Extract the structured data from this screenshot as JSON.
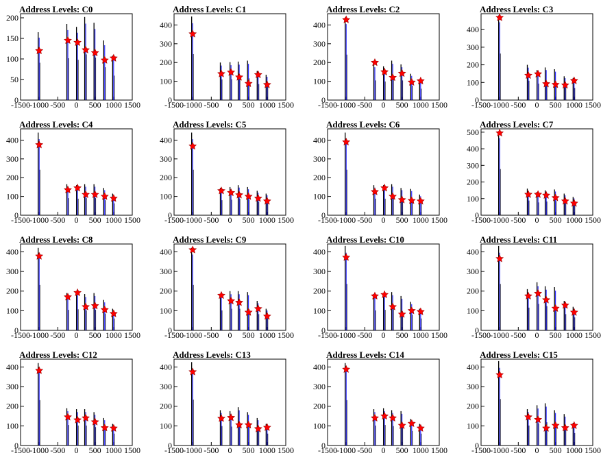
{
  "figure": {
    "title_prefix": "Address Levels: ",
    "colors": {
      "histogram": "#000000",
      "fit": "#0000ff",
      "marker": "#ff0000",
      "frame": "#000000"
    }
  },
  "chart_data": [
    {
      "type": "histogram",
      "title": "Address Levels: C0",
      "xlim": [
        -1500,
        1500
      ],
      "ylim": [
        0,
        210
      ],
      "yticks": [
        0,
        50,
        100,
        150,
        200
      ],
      "xticks": [
        -1500,
        -1000,
        -500,
        0,
        500,
        1000,
        1500
      ],
      "peaks_x": [
        -1000,
        -230,
        30,
        250,
        500,
        760,
        1000
      ],
      "peaks_y": [
        120,
        145,
        140,
        122,
        115,
        97,
        102
      ],
      "bar_heights": [
        165,
        185,
        178,
        202,
        188,
        145,
        108
      ]
    },
    {
      "type": "histogram",
      "title": "Address Levels: C1",
      "xlim": [
        -1500,
        1500
      ],
      "ylim": [
        0,
        460
      ],
      "yticks": [
        0,
        100,
        200,
        300,
        400
      ],
      "xticks": [
        -1500,
        -1000,
        -500,
        0,
        500,
        1000,
        1500
      ],
      "peaks_x": [
        -1000,
        -230,
        30,
        250,
        500,
        760,
        1000
      ],
      "peaks_y": [
        352,
        140,
        148,
        122,
        88,
        135,
        82
      ],
      "bar_heights": [
        445,
        200,
        202,
        205,
        210,
        155,
        135
      ]
    },
    {
      "type": "histogram",
      "title": "Address Levels: C2",
      "xlim": [
        -1500,
        1500
      ],
      "ylim": [
        0,
        460
      ],
      "yticks": [
        0,
        100,
        200,
        300,
        400
      ],
      "xticks": [
        -1500,
        -1000,
        -500,
        0,
        500,
        1000,
        1500
      ],
      "peaks_x": [
        -1000,
        -230,
        30,
        250,
        500,
        760,
        1000
      ],
      "peaks_y": [
        428,
        200,
        150,
        120,
        142,
        95,
        102
      ],
      "bar_heights": [
        440,
        190,
        180,
        210,
        190,
        140,
        110
      ]
    },
    {
      "type": "histogram",
      "title": "Address Levels: C3",
      "xlim": [
        -1500,
        1500
      ],
      "ylim": [
        0,
        490
      ],
      "yticks": [
        0,
        100,
        200,
        300,
        400
      ],
      "xticks": [
        -1500,
        -1000,
        -500,
        0,
        500,
        1000,
        1500
      ],
      "peaks_x": [
        -1000,
        -230,
        30,
        250,
        500,
        760,
        1000
      ],
      "peaks_y": [
        468,
        140,
        148,
        92,
        88,
        85,
        110
      ],
      "bar_heights": [
        480,
        200,
        170,
        185,
        175,
        135,
        125
      ]
    },
    {
      "type": "histogram",
      "title": "Address Levels: C4",
      "xlim": [
        -1500,
        1500
      ],
      "ylim": [
        0,
        460
      ],
      "yticks": [
        0,
        100,
        200,
        300,
        400
      ],
      "xticks": [
        -1500,
        -1000,
        -500,
        0,
        500,
        1000,
        1500
      ],
      "peaks_x": [
        -1000,
        -230,
        30,
        250,
        500,
        760,
        1000
      ],
      "peaks_y": [
        375,
        135,
        145,
        110,
        110,
        100,
        90
      ],
      "bar_heights": [
        440,
        165,
        160,
        165,
        165,
        145,
        115
      ]
    },
    {
      "type": "histogram",
      "title": "Address Levels: C5",
      "xlim": [
        -1500,
        1500
      ],
      "ylim": [
        0,
        460
      ],
      "yticks": [
        0,
        100,
        200,
        300,
        400
      ],
      "xticks": [
        -1500,
        -1000,
        -500,
        0,
        500,
        1000,
        1500
      ],
      "peaks_x": [
        -1000,
        -230,
        30,
        250,
        500,
        760,
        1000
      ],
      "peaks_y": [
        368,
        130,
        120,
        108,
        100,
        90,
        75
      ],
      "bar_heights": [
        440,
        145,
        150,
        160,
        150,
        130,
        115
      ]
    },
    {
      "type": "histogram",
      "title": "Address Levels: C6",
      "xlim": [
        -1500,
        1500
      ],
      "ylim": [
        0,
        460
      ],
      "yticks": [
        0,
        100,
        200,
        300,
        400
      ],
      "xticks": [
        -1500,
        -1000,
        -500,
        0,
        500,
        1000,
        1500
      ],
      "peaks_x": [
        -1000,
        -230,
        30,
        250,
        500,
        760,
        1000
      ],
      "peaks_y": [
        390,
        125,
        145,
        100,
        82,
        78,
        75
      ],
      "bar_heights": [
        440,
        160,
        160,
        165,
        145,
        140,
        110
      ]
    },
    {
      "type": "histogram",
      "title": "Address Levels: C7",
      "xlim": [
        -1500,
        1500
      ],
      "ylim": [
        0,
        520
      ],
      "yticks": [
        0,
        100,
        200,
        300,
        400,
        500
      ],
      "xticks": [
        -1500,
        -1000,
        -500,
        0,
        500,
        1000,
        1500
      ],
      "peaks_x": [
        -1000,
        -230,
        30,
        250,
        500,
        760,
        1000
      ],
      "peaks_y": [
        495,
        125,
        125,
        120,
        105,
        85,
        72
      ],
      "bar_heights": [
        505,
        160,
        140,
        150,
        155,
        130,
        110
      ]
    },
    {
      "type": "histogram",
      "title": "Address Levels: C8",
      "xlim": [
        -1500,
        1500
      ],
      "ylim": [
        0,
        440
      ],
      "yticks": [
        0,
        100,
        200,
        300,
        400
      ],
      "xticks": [
        -1500,
        -1000,
        -500,
        0,
        500,
        1000,
        1500
      ],
      "peaks_x": [
        -1000,
        -230,
        30,
        250,
        500,
        760,
        1000
      ],
      "peaks_y": [
        378,
        170,
        192,
        120,
        125,
        105,
        85
      ],
      "bar_heights": [
        420,
        190,
        195,
        185,
        190,
        155,
        110
      ]
    },
    {
      "type": "histogram",
      "title": "Address Levels: C9",
      "xlim": [
        -1500,
        1500
      ],
      "ylim": [
        0,
        440
      ],
      "yticks": [
        0,
        100,
        200,
        300,
        400
      ],
      "xticks": [
        -1500,
        -1000,
        -500,
        0,
        500,
        1000,
        1500
      ],
      "peaks_x": [
        -1000,
        -230,
        30,
        250,
        500,
        760,
        1000
      ],
      "peaks_y": [
        410,
        178,
        150,
        142,
        92,
        110,
        72
      ],
      "bar_heights": [
        420,
        185,
        200,
        200,
        195,
        150,
        110
      ]
    },
    {
      "type": "histogram",
      "title": "Address Levels: C10",
      "xlim": [
        -1500,
        1500
      ],
      "ylim": [
        0,
        440
      ],
      "yticks": [
        0,
        100,
        200,
        300,
        400
      ],
      "xticks": [
        -1500,
        -1000,
        -500,
        0,
        500,
        1000,
        1500
      ],
      "peaks_x": [
        -1000,
        -230,
        30,
        250,
        500,
        760,
        1000
      ],
      "peaks_y": [
        372,
        175,
        182,
        120,
        82,
        100,
        95
      ],
      "bar_heights": [
        430,
        185,
        190,
        195,
        175,
        145,
        110
      ]
    },
    {
      "type": "histogram",
      "title": "Address Levels: C11",
      "xlim": [
        -1500,
        1500
      ],
      "ylim": [
        0,
        440
      ],
      "yticks": [
        0,
        100,
        200,
        300,
        400
      ],
      "xticks": [
        -1500,
        -1000,
        -500,
        0,
        500,
        1000,
        1500
      ],
      "peaks_x": [
        -1000,
        -230,
        30,
        250,
        500,
        760,
        1000
      ],
      "peaks_y": [
        365,
        175,
        188,
        155,
        112,
        128,
        92
      ],
      "bar_heights": [
        430,
        210,
        245,
        225,
        220,
        150,
        120
      ]
    },
    {
      "type": "histogram",
      "title": "Address Levels: C12",
      "xlim": [
        -1500,
        1500
      ],
      "ylim": [
        0,
        440
      ],
      "yticks": [
        0,
        100,
        200,
        300,
        400
      ],
      "xticks": [
        -1500,
        -1000,
        -500,
        0,
        500,
        1000,
        1500
      ],
      "peaks_x": [
        -1000,
        -230,
        30,
        250,
        500,
        760,
        1000
      ],
      "peaks_y": [
        382,
        145,
        130,
        140,
        120,
        90,
        88
      ],
      "bar_heights": [
        420,
        190,
        185,
        185,
        170,
        140,
        110
      ]
    },
    {
      "type": "histogram",
      "title": "Address Levels: C13",
      "xlim": [
        -1500,
        1500
      ],
      "ylim": [
        0,
        440
      ],
      "yticks": [
        0,
        100,
        200,
        300,
        400
      ],
      "xticks": [
        -1500,
        -1000,
        -500,
        0,
        500,
        1000,
        1500
      ],
      "peaks_x": [
        -1000,
        -230,
        30,
        250,
        500,
        760,
        1000
      ],
      "peaks_y": [
        375,
        138,
        142,
        105,
        105,
        85,
        92
      ],
      "bar_heights": [
        425,
        180,
        175,
        195,
        170,
        140,
        110
      ]
    },
    {
      "type": "histogram",
      "title": "Address Levels: C14",
      "xlim": [
        -1500,
        1500
      ],
      "ylim": [
        0,
        440
      ],
      "yticks": [
        0,
        100,
        200,
        300,
        400
      ],
      "xticks": [
        -1500,
        -1000,
        -500,
        0,
        500,
        1000,
        1500
      ],
      "peaks_x": [
        -1000,
        -230,
        30,
        250,
        500,
        760,
        1000
      ],
      "peaks_y": [
        388,
        140,
        150,
        140,
        102,
        112,
        88
      ],
      "bar_heights": [
        420,
        185,
        190,
        180,
        175,
        135,
        110
      ]
    },
    {
      "type": "histogram",
      "title": "Address Levels: C15",
      "xlim": [
        -1500,
        1500
      ],
      "ylim": [
        0,
        440
      ],
      "yticks": [
        0,
        100,
        200,
        300,
        400
      ],
      "xticks": [
        -1500,
        -1000,
        -500,
        0,
        500,
        1000,
        1500
      ],
      "peaks_x": [
        -1000,
        -230,
        30,
        250,
        500,
        760,
        1000
      ],
      "peaks_y": [
        360,
        145,
        132,
        88,
        102,
        90,
        102
      ],
      "bar_heights": [
        430,
        185,
        205,
        215,
        180,
        160,
        115
      ]
    }
  ]
}
